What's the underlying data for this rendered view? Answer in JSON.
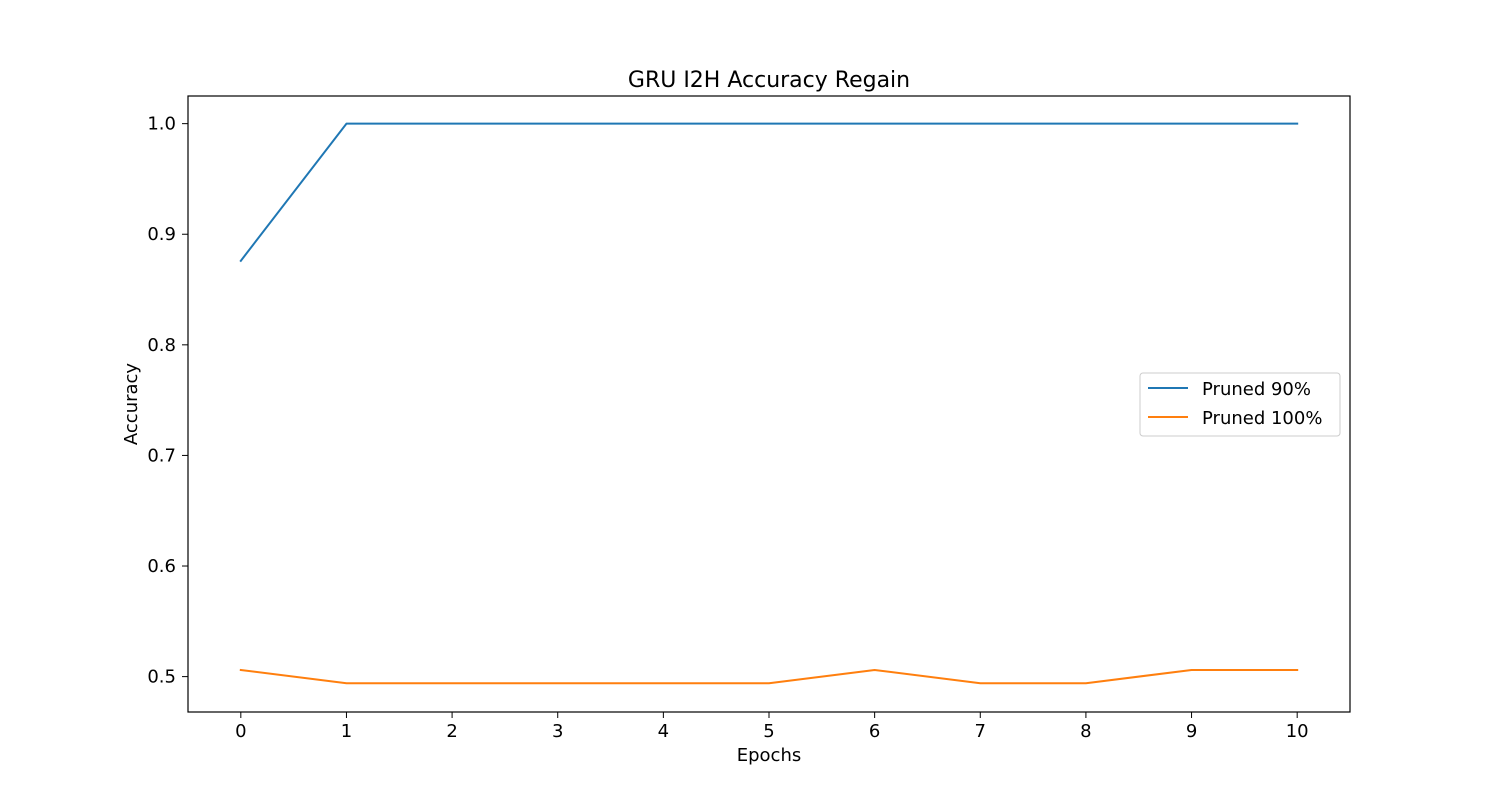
{
  "chart_data": {
    "type": "line",
    "title": "GRU I2H Accuracy Regain",
    "xlabel": "Epochs",
    "ylabel": "Accuracy",
    "x": [
      0,
      1,
      2,
      3,
      4,
      5,
      6,
      7,
      8,
      9,
      10
    ],
    "xticks": [
      "0",
      "1",
      "2",
      "3",
      "4",
      "5",
      "6",
      "7",
      "8",
      "9",
      "10"
    ],
    "yticks": [
      "0.5",
      "0.6",
      "0.7",
      "0.8",
      "0.9",
      "1.0"
    ],
    "xlim": [
      -0.5,
      10.5
    ],
    "ylim": [
      0.468,
      1.025
    ],
    "grid": false,
    "legend_position": "center-right",
    "series": [
      {
        "name": "Pruned 90%",
        "color": "#1f77b4",
        "values": [
          0.876,
          1.0,
          1.0,
          1.0,
          1.0,
          1.0,
          1.0,
          1.0,
          1.0,
          1.0,
          1.0
        ]
      },
      {
        "name": "Pruned 100%",
        "color": "#ff7f0e",
        "values": [
          0.506,
          0.494,
          0.494,
          0.494,
          0.494,
          0.494,
          0.506,
          0.494,
          0.494,
          0.506,
          0.506
        ]
      }
    ]
  }
}
